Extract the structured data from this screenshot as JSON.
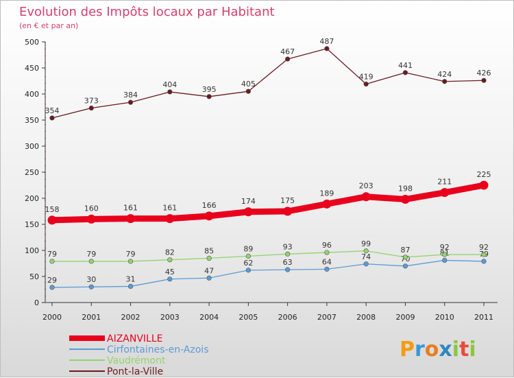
{
  "chart_data": {
    "type": "line",
    "title": "Evolution des Impôts locaux par Habitant",
    "subtitle": "(en € et par an)",
    "x": [
      "2000",
      "2001",
      "2002",
      "2003",
      "2004",
      "2005",
      "2006",
      "2007",
      "2008",
      "2009",
      "2010",
      "2011"
    ],
    "ylim": [
      0,
      500
    ],
    "yticks": [
      0,
      50,
      100,
      150,
      200,
      250,
      300,
      350,
      400,
      450,
      500
    ],
    "grid": false,
    "legend_position": "bottom-left",
    "series": [
      {
        "name": "AIZANVILLE",
        "color": "#e8001c",
        "values": [
          158,
          160,
          161,
          161,
          166,
          174,
          175,
          189,
          203,
          198,
          211,
          225
        ]
      },
      {
        "name": "Cirfontaines-en-Azois",
        "color": "#5b9bd5",
        "values": [
          29,
          30,
          31,
          45,
          47,
          62,
          63,
          64,
          74,
          70,
          81,
          79
        ]
      },
      {
        "name": "Vaudrémont",
        "color": "#92d36e",
        "values": [
          79,
          79,
          79,
          82,
          85,
          89,
          93,
          96,
          99,
          87,
          92,
          92
        ]
      },
      {
        "name": "Pont-la-Ville",
        "color": "#6b1a1f",
        "values": [
          354,
          373,
          384,
          404,
          395,
          405,
          467,
          487,
          419,
          441,
          424,
          426
        ]
      }
    ]
  },
  "logo": {
    "letters": [
      "P",
      "r",
      "o",
      "x",
      "i",
      "t",
      "i"
    ],
    "colors": [
      "#f39c12",
      "#3498db",
      "#e67e22",
      "#2e86c1",
      "#8cc63f",
      "#e74c3c",
      "#8cc63f"
    ]
  }
}
